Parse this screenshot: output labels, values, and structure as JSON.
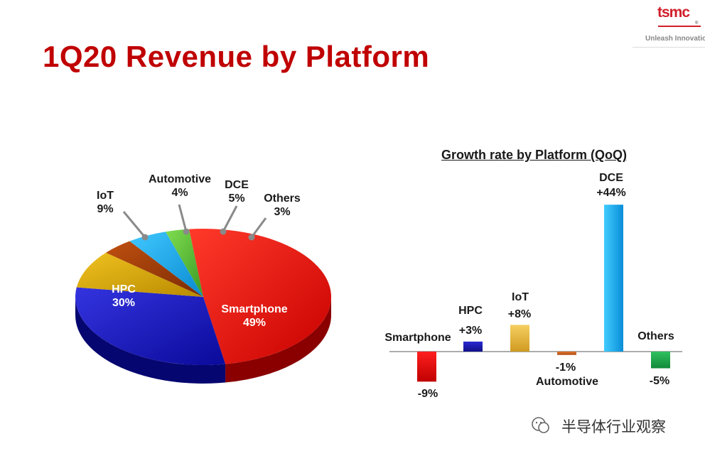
{
  "title": "1Q20 Revenue by Platform",
  "logo": {
    "word": "tsmc",
    "tagline": "Unleash Innovatio"
  },
  "watermark": "半导体行业观察",
  "chart_data": [
    {
      "type": "pie",
      "categories": [
        "Smartphone",
        "HPC",
        "IoT",
        "Automotive",
        "DCE",
        "Others"
      ],
      "values": [
        49,
        30,
        9,
        4,
        5,
        3
      ],
      "labels": [
        "49%",
        "30%",
        "9%",
        "4%",
        "5%",
        "3%"
      ],
      "colors": [
        "#e30000",
        "#1212c0",
        "#d4a300",
        "#a03a06",
        "#1aa7e8",
        "#5cc23c"
      ]
    },
    {
      "type": "bar",
      "title": "Growth rate by Platform (QoQ)",
      "categories": [
        "Smartphone",
        "HPC",
        "IoT",
        "Automotive",
        "DCE",
        "Others"
      ],
      "values": [
        -9,
        3,
        8,
        -1,
        44,
        -5
      ],
      "labels": [
        "-9%",
        "+3%",
        "+8%",
        "-1%",
        "+44%",
        "-5%"
      ],
      "colors": [
        "#e30000",
        "#1a1ab0",
        "#e8b640",
        "#d06a20",
        "#1aa7e8",
        "#1fa04a"
      ]
    }
  ]
}
